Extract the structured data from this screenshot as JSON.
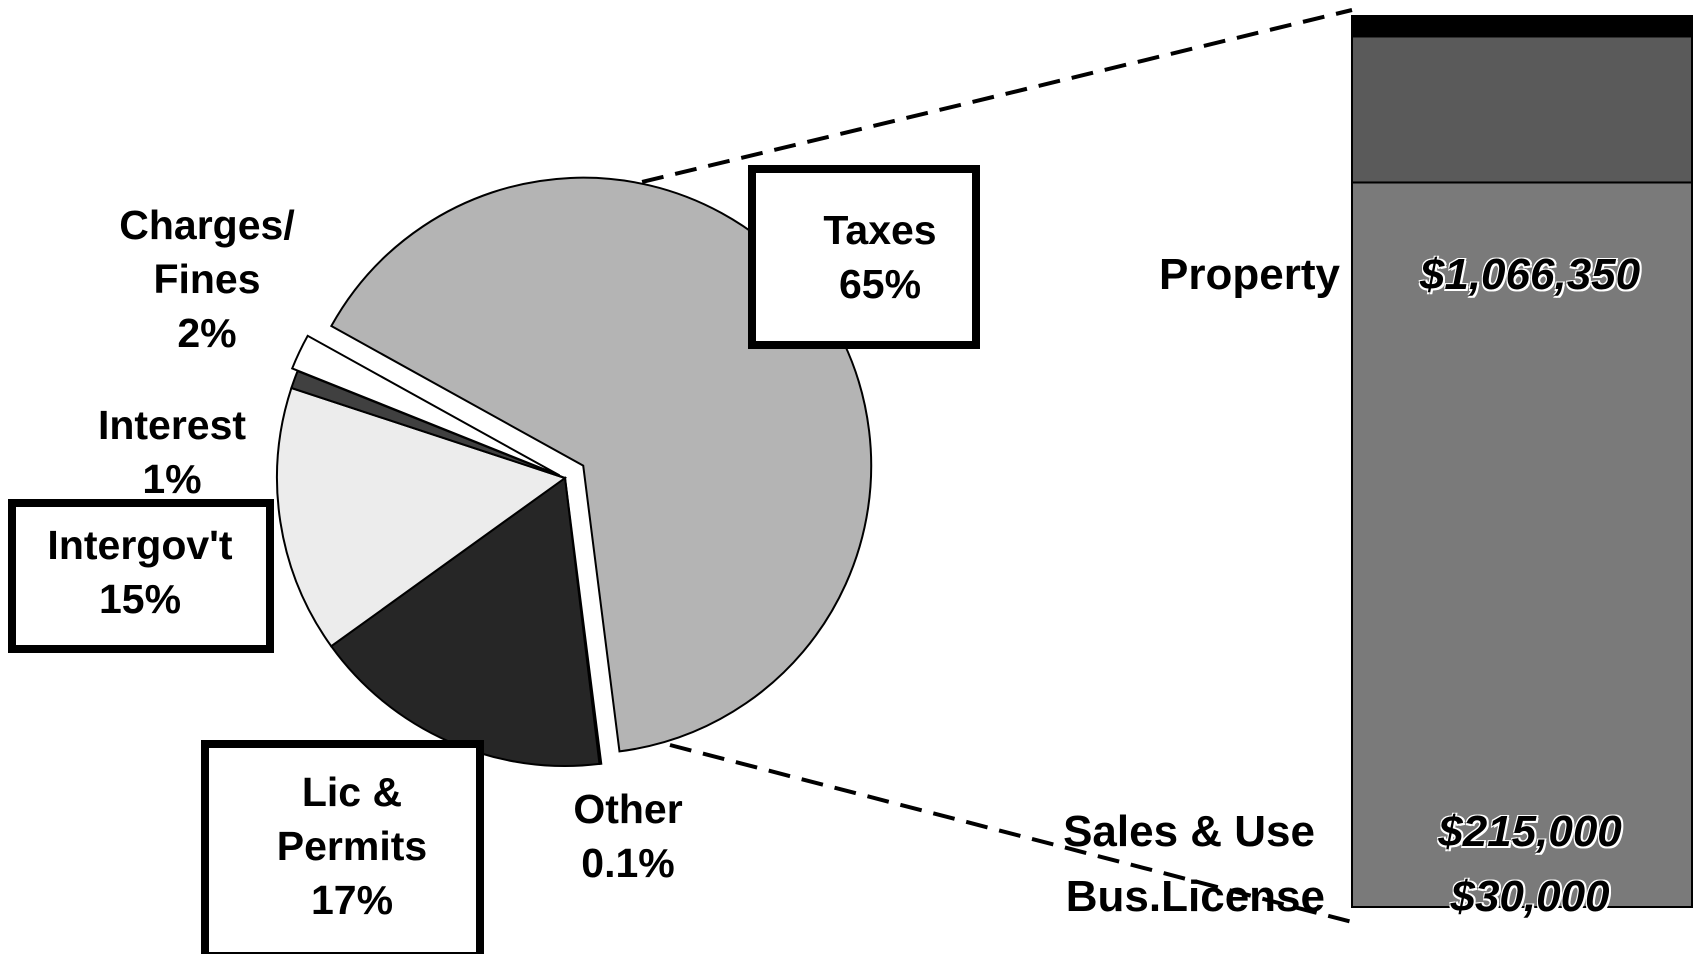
{
  "chart_data": [
    {
      "type": "pie",
      "categories": [
        "Taxes",
        "Other",
        "Lic & Permits",
        "Intergov't",
        "Interest",
        "Charges/ Fines"
      ],
      "values": [
        65,
        0.1,
        17,
        15,
        1,
        2
      ],
      "value_labels": [
        "65%",
        "0.1%",
        "17%",
        "15%",
        "1%",
        "2%"
      ],
      "colors": [
        "#b4b4b4",
        "#ffffff",
        "#262626",
        "#ececec",
        "#404040",
        "#ffffff"
      ]
    },
    {
      "type": "bar",
      "stacked": true,
      "categories": [
        "Property",
        "Sales & Use",
        "Bus.License"
      ],
      "values": [
        1066350,
        215000,
        30000
      ],
      "value_labels": [
        "$1,066,350",
        "$215,000",
        "$30,000"
      ],
      "colors": [
        "#7a7a7a",
        "#5a5a5a",
        "#000000"
      ]
    }
  ]
}
